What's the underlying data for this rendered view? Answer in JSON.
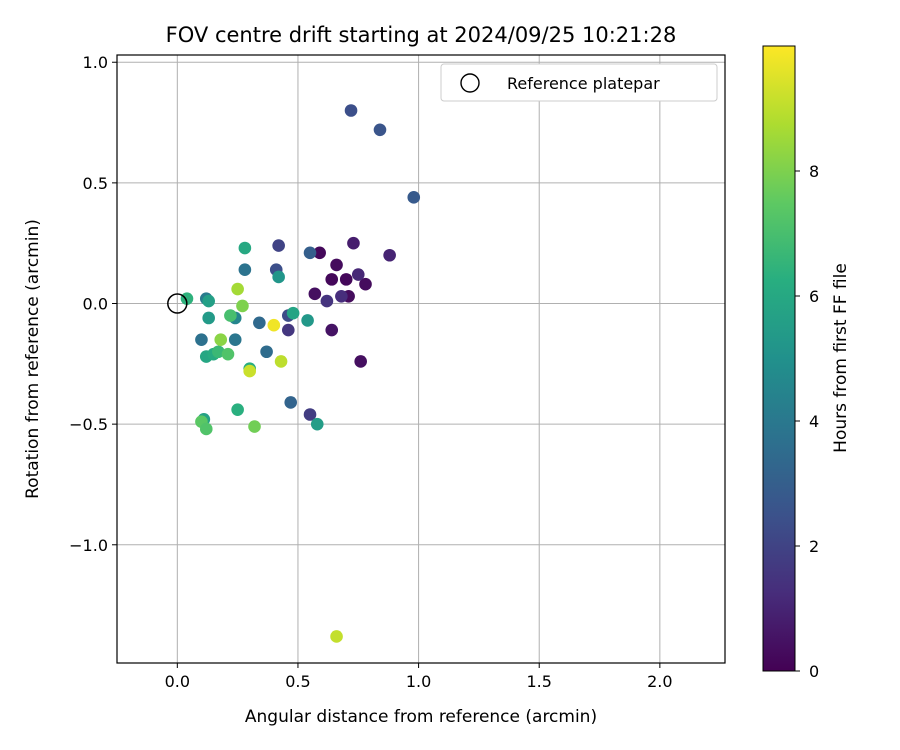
{
  "chart_data": {
    "type": "scatter",
    "title": "FOV centre drift starting at 2024/09/25 10:21:28",
    "xlabel": "Angular distance from reference (arcmin)",
    "ylabel": "Rotation from reference (arcmin)",
    "xlim": [
      -0.25,
      2.27
    ],
    "ylim": [
      -1.49,
      1.03
    ],
    "x_ticks": [
      0.0,
      0.5,
      1.0,
      1.5,
      2.0
    ],
    "x_tick_labels": [
      "0.0",
      "0.5",
      "1.0",
      "1.5",
      "2.0"
    ],
    "y_ticks": [
      -1.0,
      -0.5,
      0.0,
      0.5,
      1.0
    ],
    "y_tick_labels": [
      "−1.0",
      "−0.5",
      "0.0",
      "0.5",
      "1.0"
    ],
    "grid": true,
    "legend_position": "top-right",
    "legend": [
      {
        "label": "Reference platepar",
        "marker": "open-circle",
        "color": "#000000"
      }
    ],
    "reference_point": {
      "x": 0.0,
      "y": 0.0
    },
    "colorbar": {
      "label": "Hours from first FF file",
      "colormap": "viridis",
      "range": [
        0,
        10
      ],
      "ticks": [
        0,
        2,
        4,
        6,
        8
      ],
      "tick_labels": [
        "0",
        "2",
        "4",
        "6",
        "8"
      ]
    },
    "points": [
      {
        "x": 0.59,
        "y": 0.21,
        "hours": 0.2
      },
      {
        "x": 0.66,
        "y": 0.16,
        "hours": 0.3
      },
      {
        "x": 0.64,
        "y": 0.1,
        "hours": 0.2
      },
      {
        "x": 0.7,
        "y": 0.1,
        "hours": 0.2
      },
      {
        "x": 0.78,
        "y": 0.08,
        "hours": 0.3
      },
      {
        "x": 0.57,
        "y": 0.04,
        "hours": 0.4
      },
      {
        "x": 0.71,
        "y": 0.03,
        "hours": 0.3
      },
      {
        "x": 0.64,
        "y": -0.11,
        "hours": 0.5
      },
      {
        "x": 0.76,
        "y": -0.24,
        "hours": 0.4
      },
      {
        "x": 0.73,
        "y": 0.25,
        "hours": 0.8
      },
      {
        "x": 0.88,
        "y": 0.2,
        "hours": 1.0
      },
      {
        "x": 0.75,
        "y": 0.12,
        "hours": 1.1
      },
      {
        "x": 0.68,
        "y": 0.03,
        "hours": 1.3
      },
      {
        "x": 0.62,
        "y": 0.01,
        "hours": 1.5
      },
      {
        "x": 0.46,
        "y": -0.11,
        "hours": 1.6
      },
      {
        "x": 0.55,
        "y": -0.46,
        "hours": 1.8
      },
      {
        "x": 0.42,
        "y": 0.24,
        "hours": 2.0
      },
      {
        "x": 0.41,
        "y": 0.14,
        "hours": 2.4
      },
      {
        "x": 0.46,
        "y": -0.05,
        "hours": 2.3
      },
      {
        "x": 0.72,
        "y": 0.8,
        "hours": 2.4
      },
      {
        "x": 0.84,
        "y": 0.72,
        "hours": 2.6
      },
      {
        "x": 0.98,
        "y": 0.44,
        "hours": 2.8
      },
      {
        "x": 0.55,
        "y": 0.21,
        "hours": 3.0
      },
      {
        "x": 0.47,
        "y": -0.41,
        "hours": 3.2
      },
      {
        "x": 0.34,
        "y": -0.08,
        "hours": 3.4
      },
      {
        "x": 0.37,
        "y": -0.2,
        "hours": 3.5
      },
      {
        "x": 0.28,
        "y": 0.14,
        "hours": 3.8
      },
      {
        "x": 0.24,
        "y": -0.15,
        "hours": 3.9
      },
      {
        "x": 0.1,
        "y": -0.15,
        "hours": 3.7
      },
      {
        "x": 0.12,
        "y": 0.02,
        "hours": 4.1
      },
      {
        "x": 0.24,
        "y": -0.06,
        "hours": 4.5
      },
      {
        "x": 0.42,
        "y": 0.11,
        "hours": 5.2
      },
      {
        "x": 0.54,
        "y": -0.07,
        "hours": 5.3
      },
      {
        "x": 0.58,
        "y": -0.5,
        "hours": 5.5
      },
      {
        "x": 0.13,
        "y": -0.06,
        "hours": 5.4
      },
      {
        "x": 0.13,
        "y": 0.01,
        "hours": 5.6
      },
      {
        "x": 0.28,
        "y": 0.23,
        "hours": 6.0
      },
      {
        "x": 0.48,
        "y": -0.04,
        "hours": 5.8
      },
      {
        "x": 0.12,
        "y": -0.22,
        "hours": 5.9
      },
      {
        "x": 0.11,
        "y": -0.48,
        "hours": 5.7
      },
      {
        "x": 0.04,
        "y": 0.02,
        "hours": 6.4
      },
      {
        "x": 0.15,
        "y": -0.21,
        "hours": 6.1
      },
      {
        "x": 0.25,
        "y": -0.44,
        "hours": 6.3
      },
      {
        "x": 0.3,
        "y": -0.27,
        "hours": 6.2
      },
      {
        "x": 0.17,
        "y": -0.2,
        "hours": 6.7
      },
      {
        "x": 0.22,
        "y": -0.05,
        "hours": 7.0
      },
      {
        "x": 0.21,
        "y": -0.21,
        "hours": 7.2
      },
      {
        "x": 0.1,
        "y": -0.49,
        "hours": 7.4
      },
      {
        "x": 0.12,
        "y": -0.52,
        "hours": 7.2
      },
      {
        "x": 0.32,
        "y": -0.51,
        "hours": 7.8
      },
      {
        "x": 0.27,
        "y": -0.01,
        "hours": 8.0
      },
      {
        "x": 0.18,
        "y": -0.15,
        "hours": 8.2
      },
      {
        "x": 0.25,
        "y": 0.06,
        "hours": 8.6
      },
      {
        "x": 0.3,
        "y": -0.28,
        "hours": 9.2
      },
      {
        "x": 0.43,
        "y": -0.24,
        "hours": 9.0
      },
      {
        "x": 0.66,
        "y": -1.38,
        "hours": 9.1
      },
      {
        "x": 0.4,
        "y": -0.09,
        "hours": 9.8
      }
    ]
  }
}
